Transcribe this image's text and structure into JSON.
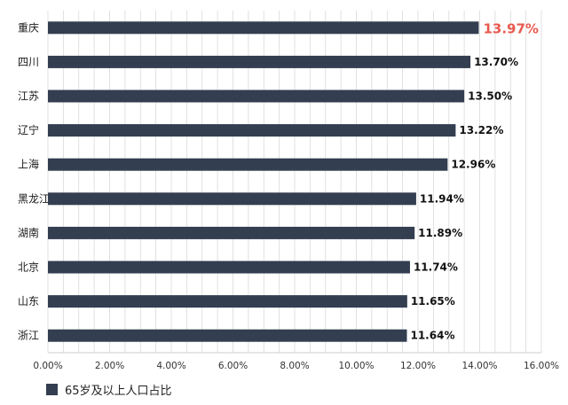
{
  "chart_data": {
    "type": "bar",
    "orientation": "horizontal",
    "categories": [
      "重庆",
      "四川",
      "江苏",
      "辽宁",
      "上海",
      "黑龙江",
      "湖南",
      "北京",
      "山东",
      "浙江"
    ],
    "series": [
      {
        "name": "65岁及以上人口占比",
        "values": [
          13.97,
          13.7,
          13.5,
          13.22,
          12.96,
          11.94,
          11.89,
          11.74,
          11.65,
          11.64
        ],
        "labels": [
          "13.97%",
          "13.70%",
          "13.50%",
          "13.22%",
          "12.96%",
          "11.94%",
          "11.89%",
          "11.74%",
          "11.65%",
          "11.64%"
        ]
      }
    ],
    "highlight_index": 0,
    "xlim": [
      0,
      16
    ],
    "x_ticks": [
      "0.00%",
      "2.00%",
      "4.00%",
      "6.00%",
      "8.00%",
      "10.00%",
      "12.00%",
      "14.00%",
      "16.00%"
    ],
    "grid": true,
    "legend_position": "bottom-left",
    "colors": {
      "bar": "#333e50",
      "highlight_label": "#e85a4f",
      "grid": "#d9d9d9"
    }
  }
}
